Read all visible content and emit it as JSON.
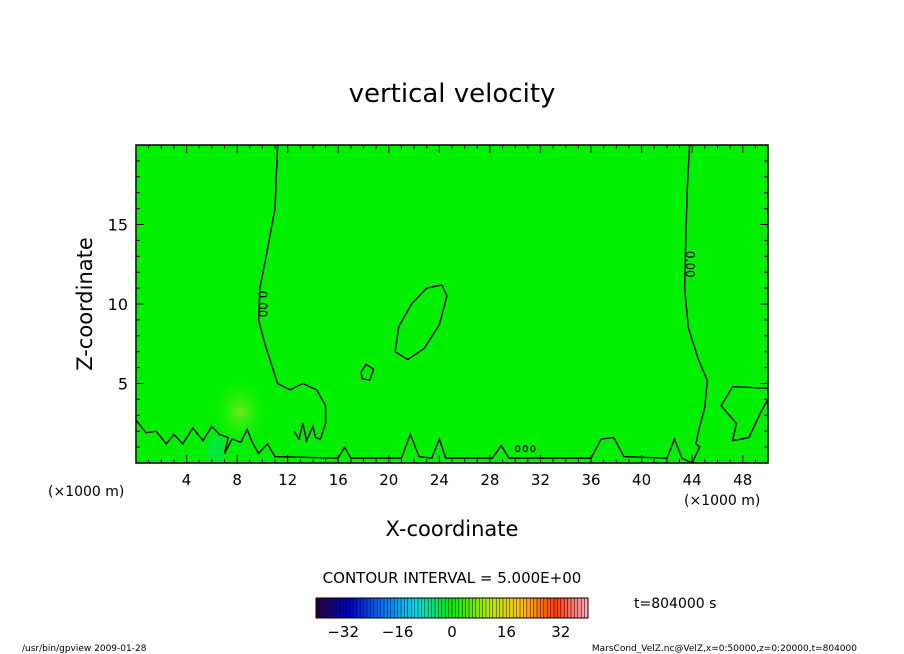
{
  "chart_data": {
    "type": "heatmap",
    "title": "vertical velocity",
    "xlabel": "X-coordinate",
    "ylabel": "Z-coordinate",
    "x_unit": "(×1000 m)",
    "x_unit_right": "(×1000 m)",
    "xlim": [
      0,
      50
    ],
    "ylim": [
      0,
      20
    ],
    "x_ticks": [
      4,
      8,
      12,
      16,
      20,
      24,
      28,
      32,
      36,
      40,
      44,
      48
    ],
    "y_ticks": [
      5,
      10,
      15
    ],
    "field_color": "#00f000",
    "contour_level_label": "0.00",
    "contour_interval_label": "CONTOUR INTERVAL = 5.000E+00",
    "time_label": "t=804000 s",
    "colorbar": {
      "range": [
        -40,
        40
      ],
      "tick_values": [
        -32,
        -16,
        0,
        16,
        32
      ],
      "tick_labels": [
        "−32",
        "−16",
        "0",
        "16",
        "32"
      ]
    },
    "contours": [
      {
        "name": "left-zero-contour",
        "points": [
          [
            11.2,
            20
          ],
          [
            11.0,
            16
          ],
          [
            10.3,
            13
          ],
          [
            9.8,
            11
          ],
          [
            9.7,
            9
          ],
          [
            10.2,
            7.5
          ],
          [
            10.8,
            6
          ],
          [
            11.2,
            5
          ],
          [
            12.2,
            4.6
          ],
          [
            13.2,
            5
          ],
          [
            14.3,
            4.6
          ],
          [
            15.0,
            3.6
          ],
          [
            15.0,
            2.5
          ],
          [
            14.6,
            1.5
          ],
          [
            14.2,
            1.6
          ],
          [
            14.0,
            2.3
          ],
          [
            13.5,
            1.4
          ],
          [
            13.2,
            2.5
          ],
          [
            12.9,
            1.5
          ],
          [
            12.5,
            2.0
          ]
        ]
      },
      {
        "name": "right-zero-contour",
        "points": [
          [
            43.8,
            20
          ],
          [
            43.6,
            17
          ],
          [
            43.5,
            14
          ],
          [
            43.4,
            11
          ],
          [
            43.7,
            8.5
          ],
          [
            44.5,
            6.5
          ],
          [
            45.2,
            5.2
          ],
          [
            45.0,
            3.5
          ],
          [
            44.5,
            2.0
          ],
          [
            44.3,
            1.2
          ],
          [
            44.6,
            1.0
          ],
          [
            44.0,
            0
          ]
        ]
      },
      {
        "name": "center-loop-contour",
        "points": [
          [
            20.5,
            7.0
          ],
          [
            21.5,
            6.5
          ],
          [
            22.8,
            7.2
          ],
          [
            24.0,
            8.7
          ],
          [
            24.6,
            10.5
          ],
          [
            24.2,
            11.2
          ],
          [
            23.0,
            11.0
          ],
          [
            21.8,
            10.0
          ],
          [
            20.8,
            8.6
          ],
          [
            20.5,
            7.0
          ]
        ]
      },
      {
        "name": "small-loop-contour",
        "points": [
          [
            17.8,
            5.7
          ],
          [
            18.2,
            6.2
          ],
          [
            18.8,
            5.9
          ],
          [
            18.5,
            5.2
          ],
          [
            17.9,
            5.3
          ],
          [
            17.8,
            5.7
          ]
        ]
      },
      {
        "name": "right-edge-contour",
        "points": [
          [
            50,
            4.7
          ],
          [
            47.2,
            4.8
          ],
          [
            46.3,
            3.6
          ],
          [
            47.5,
            2.5
          ],
          [
            47.2,
            1.4
          ],
          [
            48.5,
            1.6
          ],
          [
            49.5,
            3.3
          ],
          [
            50,
            4.0
          ]
        ]
      },
      {
        "name": "bottom-wave-contour",
        "points": [
          [
            0,
            2.7
          ],
          [
            0.8,
            1.9
          ],
          [
            1.6,
            2.0
          ],
          [
            2.4,
            1.2
          ],
          [
            3.0,
            1.8
          ],
          [
            3.7,
            1.2
          ],
          [
            4.5,
            2.2
          ],
          [
            5.3,
            1.4
          ],
          [
            6.0,
            2.3
          ],
          [
            6.6,
            1.8
          ],
          [
            7.3,
            1.6
          ],
          [
            7.0,
            0.6
          ],
          [
            7.6,
            1.5
          ],
          [
            8.3,
            1.3
          ],
          [
            8.8,
            2.1
          ],
          [
            9.2,
            1.3
          ],
          [
            9.7,
            0.6
          ],
          [
            10.4,
            1.2
          ],
          [
            11.0,
            0.4
          ],
          [
            16.0,
            0.3
          ],
          [
            16.5,
            1.0
          ],
          [
            17.0,
            0.3
          ],
          [
            21.0,
            0.3
          ],
          [
            21.7,
            1.8
          ],
          [
            22.4,
            0.4
          ],
          [
            23.4,
            0.3
          ],
          [
            24.0,
            1.5
          ],
          [
            24.5,
            0.3
          ],
          [
            28.2,
            0.3
          ],
          [
            28.9,
            1.1
          ],
          [
            29.5,
            0.3
          ],
          [
            36.0,
            0.3
          ],
          [
            36.8,
            1.5
          ],
          [
            37.8,
            1.6
          ],
          [
            38.6,
            0.4
          ],
          [
            42.0,
            0.3
          ],
          [
            42.6,
            1.5
          ],
          [
            43.2,
            0.3
          ],
          [
            44.0,
            0
          ]
        ]
      }
    ]
  },
  "footer": {
    "left": "/usr/bin/gpview  2009-01-28",
    "right": "MarsCond_VelZ.nc@VelZ,x=0:50000,z=0:20000,t=804000"
  }
}
